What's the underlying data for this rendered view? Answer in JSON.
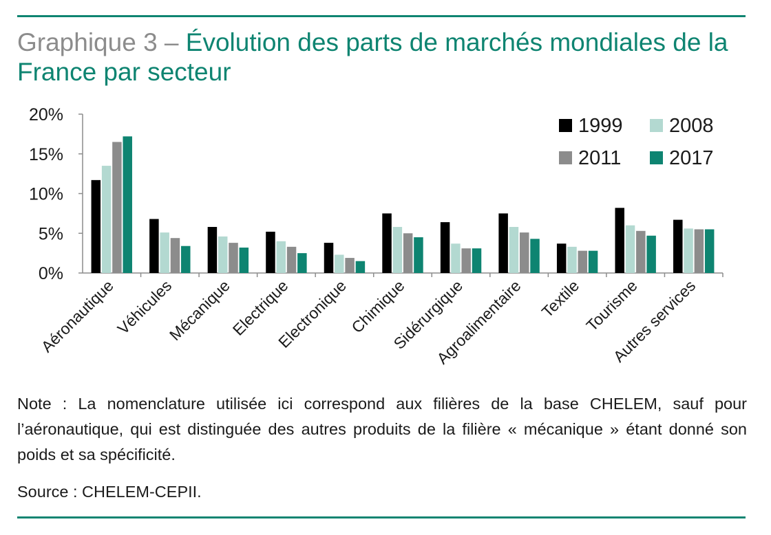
{
  "header": {
    "title_prefix": "Graphique 3 – ",
    "title_main": "Évolution des parts de marchés mondiales de la France par secteur"
  },
  "footer": {
    "note": "Note : La nomenclature utilisée ici correspond aux filières de la base CHELEM, sauf pour l’aéronautique, qui est distinguée des autres produits de la filière « mécanique » étant donné son poids et sa spécificité.",
    "source": "Source : CHELEM-CEPII."
  },
  "colors": {
    "accent": "#0e8471",
    "axis": "#8c8c8c"
  },
  "chart_data": {
    "type": "bar",
    "title": "",
    "xlabel": "",
    "ylabel": "",
    "ylim": [
      0,
      20
    ],
    "y_ticks": [
      0,
      5,
      10,
      15,
      20
    ],
    "y_tick_labels": [
      "0%",
      "5%",
      "10%",
      "15%",
      "20%"
    ],
    "grid": false,
    "legend_position": "top-right",
    "categories": [
      "Aéronautique",
      "Véhicules",
      "Mécanique",
      "Electrique",
      "Electronique",
      "Chimique",
      "Sidérurgique",
      "Agroalimentaire",
      "Textile",
      "Tourisme",
      "Autres services"
    ],
    "series": [
      {
        "name": "1999",
        "color": "#000000",
        "values": [
          11.7,
          6.8,
          5.8,
          5.2,
          3.8,
          7.5,
          6.4,
          7.5,
          3.7,
          8.2,
          6.7
        ]
      },
      {
        "name": "2008",
        "color": "#b3d9d1",
        "values": [
          13.5,
          5.1,
          4.6,
          4.0,
          2.3,
          5.8,
          3.7,
          5.8,
          3.3,
          6.0,
          5.6
        ]
      },
      {
        "name": "2011",
        "color": "#8c8c8c",
        "values": [
          16.5,
          4.4,
          3.8,
          3.3,
          1.9,
          5.0,
          3.1,
          5.1,
          2.8,
          5.3,
          5.5
        ]
      },
      {
        "name": "2017",
        "color": "#0e8471",
        "values": [
          17.2,
          3.4,
          3.2,
          2.5,
          1.5,
          4.5,
          3.1,
          4.3,
          2.8,
          4.7,
          5.5
        ]
      }
    ]
  }
}
